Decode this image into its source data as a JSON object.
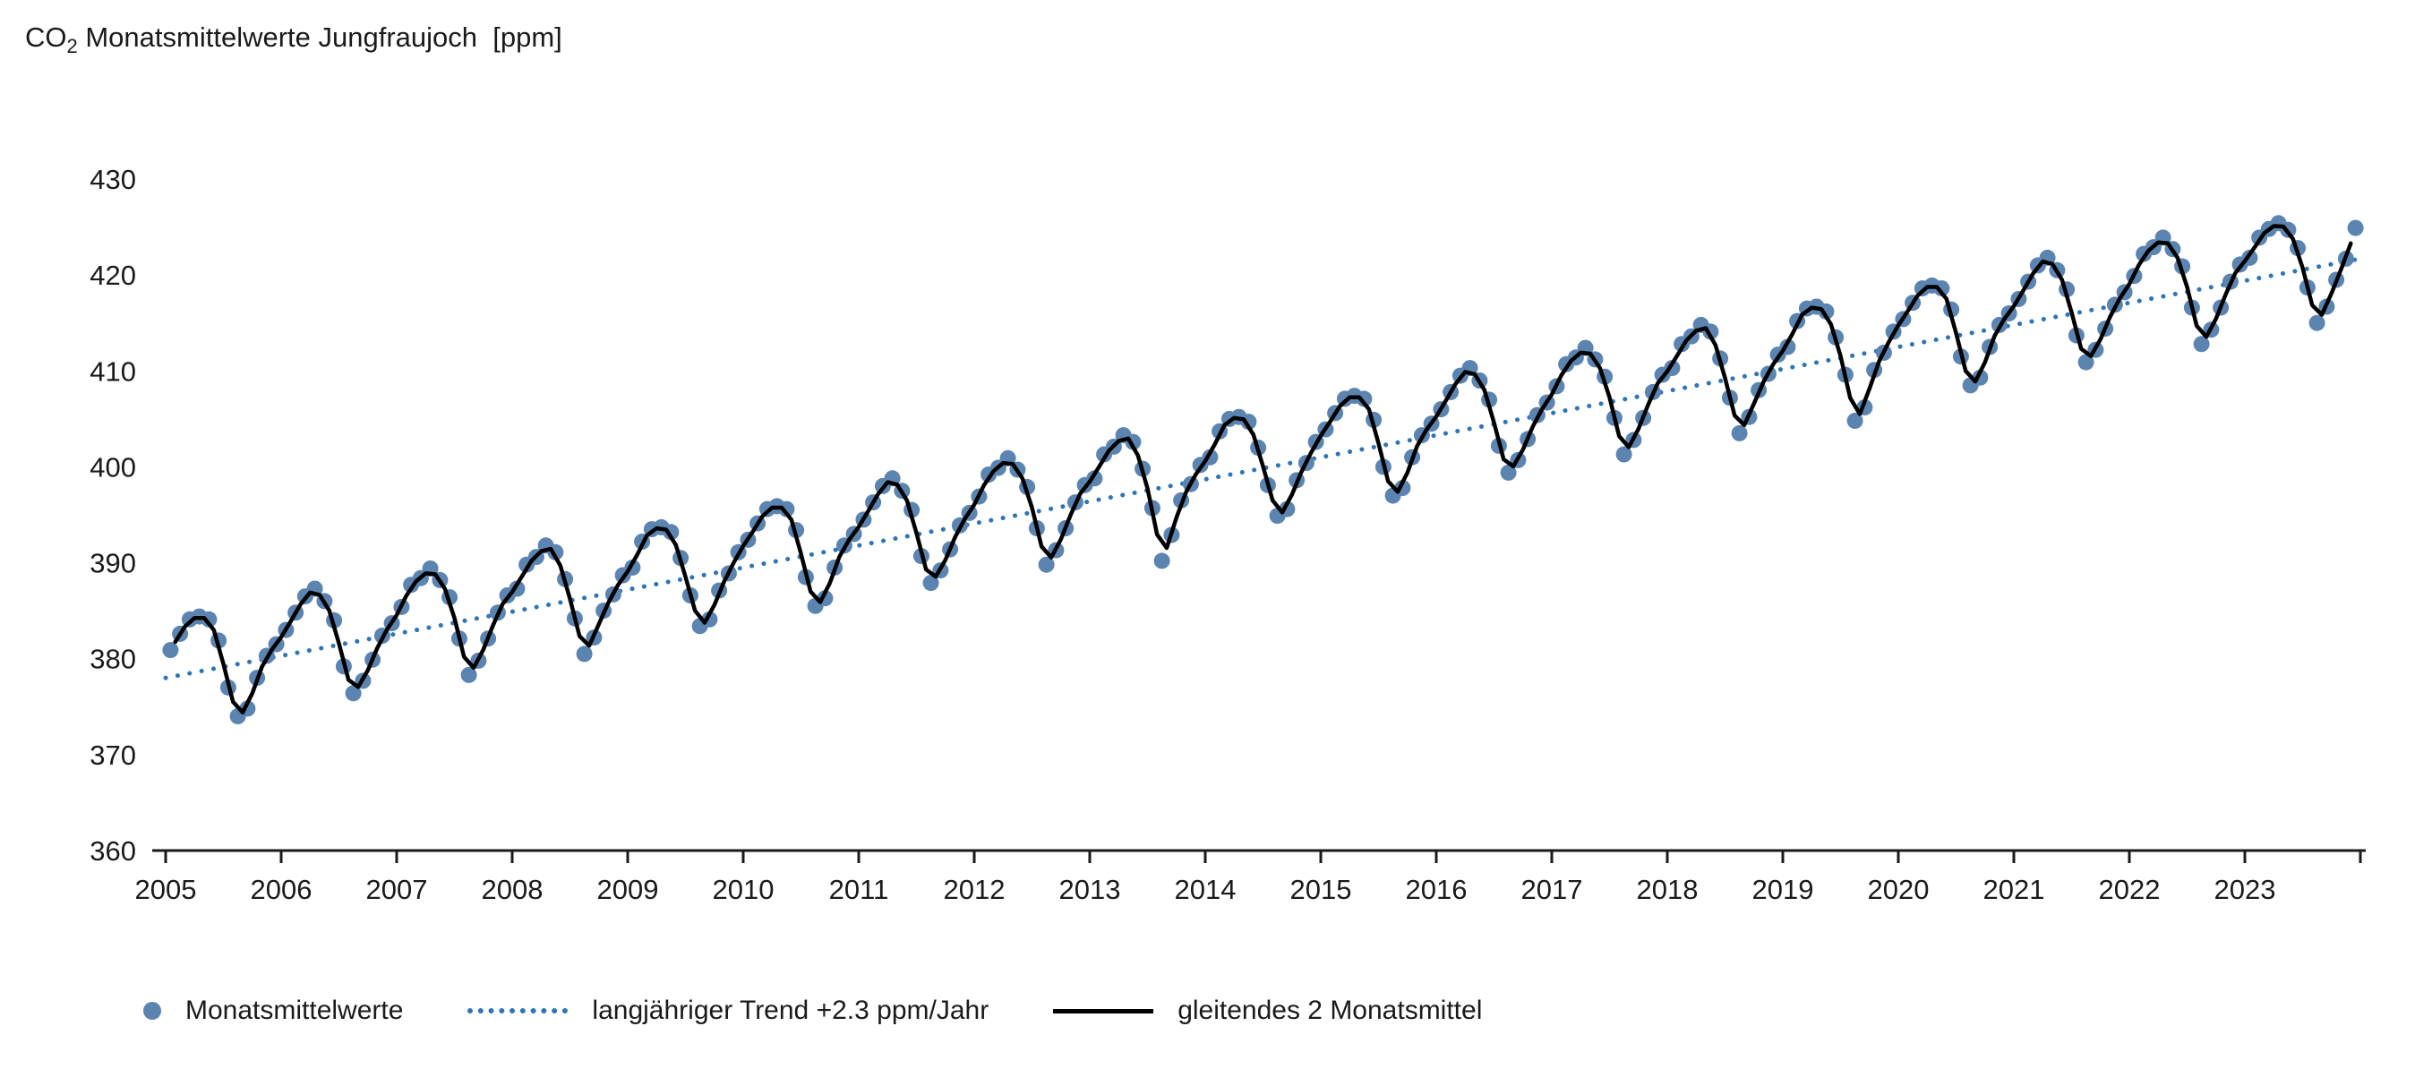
{
  "title": {
    "prefix": "CO",
    "subscript": "2",
    "rest": " Monatsmittelwerte Jungfraujoch  [ppm]"
  },
  "chart_data": {
    "type": "scatter",
    "title": "CO2 Monatsmittelwerte Jungfraujoch [ppm]",
    "x_start": 2005,
    "x_end": 2024,
    "ylim": [
      360,
      430
    ],
    "y_ticks": [
      360,
      370,
      380,
      390,
      400,
      410,
      420,
      430
    ],
    "x_tick_labels": [
      "2005",
      "2006",
      "2007",
      "2008",
      "2009",
      "2010",
      "2011",
      "2012",
      "2013",
      "2014",
      "2015",
      "2016",
      "2017",
      "2018",
      "2019",
      "2020",
      "2021",
      "2022",
      "2023"
    ],
    "grid": false,
    "legend_position": "bottom",
    "series_monthly": {
      "name": "Monatsmittelwerte",
      "color": "#5b84b1",
      "start_year": 2005,
      "values": [
        380.9,
        382.6,
        384.1,
        384.4,
        384.1,
        381.9,
        377.0,
        374.0,
        374.8,
        378.0,
        380.3,
        381.5,
        383.0,
        384.8,
        386.5,
        387.3,
        386.0,
        384.0,
        379.2,
        376.4,
        377.7,
        379.9,
        382.4,
        383.7,
        385.4,
        387.7,
        388.4,
        389.4,
        388.2,
        386.4,
        382.1,
        378.3,
        379.8,
        382.1,
        384.8,
        386.6,
        387.3,
        389.8,
        390.6,
        391.8,
        391.1,
        388.3,
        384.2,
        380.5,
        382.2,
        385.0,
        386.7,
        388.7,
        389.5,
        392.2,
        393.5,
        393.7,
        393.2,
        390.5,
        386.6,
        383.4,
        384.1,
        387.1,
        388.9,
        391.1,
        392.4,
        394.1,
        395.6,
        395.9,
        395.6,
        393.4,
        388.5,
        385.5,
        386.3,
        389.5,
        391.8,
        393.0,
        394.5,
        396.3,
        398.0,
        398.8,
        397.5,
        395.5,
        390.7,
        387.9,
        389.2,
        391.4,
        393.9,
        395.2,
        396.9,
        399.2,
        399.9,
        400.9,
        399.7,
        397.9,
        393.6,
        389.8,
        391.3,
        393.6,
        396.3,
        398.1,
        398.8,
        401.3,
        402.1,
        403.3,
        402.6,
        399.8,
        395.7,
        390.2,
        392.9,
        396.5,
        398.2,
        400.2,
        401.0,
        403.7,
        405.0,
        405.2,
        404.7,
        402.0,
        398.1,
        394.9,
        395.6,
        398.6,
        400.4,
        402.6,
        403.9,
        405.6,
        407.1,
        407.4,
        407.1,
        404.9,
        400.0,
        397.0,
        397.8,
        401.0,
        403.3,
        404.5,
        406.0,
        407.8,
        409.5,
        410.3,
        409.0,
        407.0,
        402.2,
        399.4,
        400.7,
        402.9,
        405.4,
        406.7,
        408.4,
        410.7,
        411.4,
        412.4,
        411.2,
        409.4,
        405.1,
        401.3,
        402.8,
        405.1,
        407.8,
        409.6,
        410.3,
        412.8,
        413.6,
        414.8,
        414.1,
        411.3,
        407.2,
        403.5,
        405.2,
        408.0,
        409.7,
        411.7,
        412.5,
        415.2,
        416.5,
        416.7,
        416.2,
        413.5,
        409.6,
        404.8,
        406.2,
        410.1,
        411.9,
        414.1,
        415.4,
        417.1,
        418.6,
        418.9,
        418.6,
        416.4,
        411.5,
        408.5,
        409.3,
        412.5,
        414.8,
        416.0,
        417.5,
        419.3,
        421.0,
        421.8,
        420.5,
        418.5,
        413.7,
        410.9,
        412.2,
        414.4,
        416.9,
        418.2,
        419.9,
        422.2,
        422.9,
        423.9,
        422.7,
        420.9,
        416.6,
        412.8,
        414.3,
        416.6,
        419.3,
        421.1,
        421.8,
        423.9,
        424.8,
        425.4,
        424.7,
        422.8,
        418.7,
        415.0,
        416.7,
        419.5,
        421.7,
        424.9
      ]
    },
    "trend": {
      "name": "langjähriger Trend +2.3 ppm/Jahr",
      "color": "#2e75b6",
      "slope_ppm_per_year": 2.3,
      "start_value": 378.0,
      "end_value": 421.7
    },
    "moving_average": {
      "name": "gleitendes 2 Monatsmittel",
      "color": "#000000",
      "window_months": 2,
      "derived_from": "series_monthly"
    },
    "legend": [
      {
        "label": "Monatsmittelwerte"
      },
      {
        "label": "langjähriger Trend +2.3 ppm/Jahr"
      },
      {
        "label": "gleitendes 2 Monatsmittel"
      }
    ]
  }
}
